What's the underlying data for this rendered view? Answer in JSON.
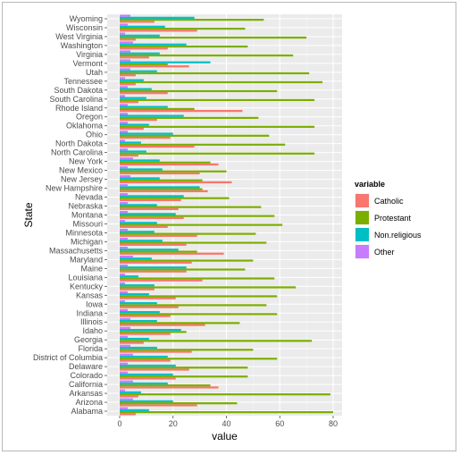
{
  "chart_data": {
    "type": "bar",
    "orientation": "horizontal",
    "xlabel": "value",
    "ylabel": "State",
    "xlim": [
      0,
      83
    ],
    "xticks": [
      0,
      20,
      40,
      60,
      80
    ],
    "grid": true,
    "legend_position": "right",
    "legend_title": "variable",
    "categories": [
      "Alabama",
      "Arizona",
      "Arkansas",
      "California",
      "Colorado",
      "Delaware",
      "District of Columbia",
      "Florida",
      "Georgia",
      "Idaho",
      "Illinois",
      "Indiana",
      "Iowa",
      "Kansas",
      "Kentucky",
      "Louisiana",
      "Maine",
      "Maryland",
      "Massachusetts",
      "Michigan",
      "Minnesota",
      "Missouri",
      "Montana",
      "Nebraska",
      "Nevada",
      "New Hampshire",
      "New Jersey",
      "New Mexico",
      "New York",
      "North Carolina",
      "North Dakota",
      "Ohio",
      "Oklahoma",
      "Oregon",
      "Rhode Island",
      "South Carolina",
      "South Dakota",
      "Tennessee",
      "Utah",
      "Vermont",
      "Virginia",
      "Washington",
      "West Virginia",
      "Wisconsin",
      "Wyoming"
    ],
    "series": [
      {
        "name": "Catholic",
        "color": "#F8766D",
        "values": [
          6,
          29,
          7,
          37,
          21,
          26,
          19,
          27,
          9,
          19,
          32,
          19,
          22,
          21,
          13,
          31,
          25,
          27,
          39,
          25,
          29,
          18,
          24,
          22,
          23,
          33,
          42,
          30,
          37,
          7,
          28,
          19,
          9,
          14,
          46,
          7,
          18,
          6,
          6,
          26,
          11,
          18,
          6,
          29,
          13
        ]
      },
      {
        "name": "Protestant",
        "color": "#7CAE00",
        "values": [
          80,
          44,
          79,
          34,
          48,
          48,
          59,
          50,
          72,
          25,
          45,
          59,
          55,
          59,
          66,
          58,
          47,
          50,
          29,
          55,
          51,
          61,
          58,
          53,
          41,
          31,
          31,
          40,
          34,
          73,
          62,
          56,
          73,
          52,
          28,
          73,
          59,
          76,
          71,
          18,
          65,
          48,
          70,
          47,
          54
        ]
      },
      {
        "name": "Non.religious",
        "color": "#00BFC4",
        "values": [
          11,
          20,
          8,
          18,
          20,
          21,
          18,
          14,
          11,
          23,
          14,
          15,
          14,
          11,
          13,
          7,
          25,
          12,
          22,
          16,
          13,
          14,
          21,
          14,
          24,
          30,
          15,
          16,
          15,
          10,
          8,
          20,
          11,
          24,
          18,
          10,
          12,
          9,
          14,
          34,
          15,
          25,
          15,
          17,
          28
        ]
      },
      {
        "name": "Other",
        "color": "#C77CFF",
        "values": [
          3,
          5,
          2,
          5,
          3,
          3,
          5,
          4,
          3,
          4,
          4,
          3,
          2,
          3,
          2,
          2,
          3,
          5,
          3,
          3,
          3,
          2,
          3,
          3,
          3,
          3,
          4,
          3,
          5,
          3,
          2,
          3,
          3,
          3,
          3,
          2,
          3,
          2,
          4,
          4,
          4,
          5,
          2,
          3,
          4
        ]
      }
    ]
  }
}
